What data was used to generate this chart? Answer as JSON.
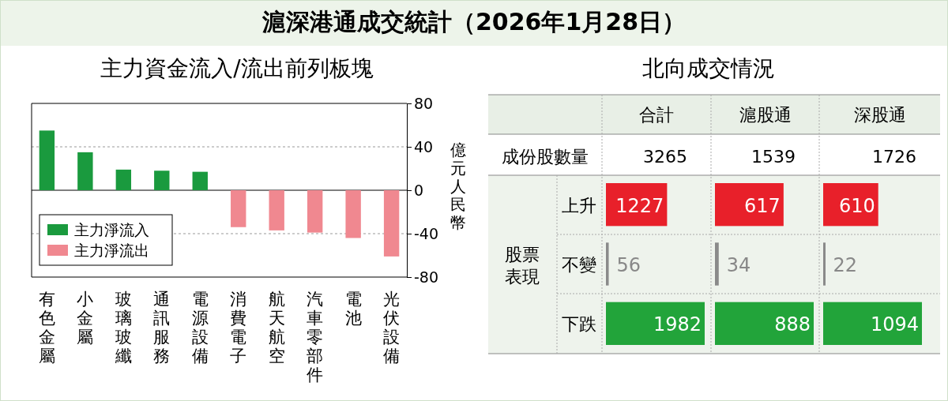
{
  "chart_data": [
    {
      "type": "bar",
      "title": "滬深港通成交統計（2026年1月28日）",
      "subtitle": "主力資金流入/流出前列板塊",
      "ylabel": "億元人民幣",
      "categories": [
        "有色金屬",
        "小金屬",
        "玻璃玻纖",
        "通訊服務",
        "電源設備",
        "消費電子",
        "航天航空",
        "汽車零部件",
        "電池",
        "光伏設備"
      ],
      "series": [
        {
          "name": "主力淨流入",
          "color": "#1a9a3e",
          "values": [
            55,
            35,
            19,
            18,
            17,
            null,
            null,
            null,
            null,
            null
          ]
        },
        {
          "name": "主力淨流出",
          "color": "#f08890",
          "values": [
            null,
            null,
            null,
            null,
            null,
            -34,
            -37,
            -39,
            -44,
            -61
          ]
        }
      ],
      "ylim": [
        -80,
        80
      ],
      "yticks": [
        -80,
        -40,
        0,
        40,
        80
      ],
      "grid": "y",
      "legend": "bottom left"
    },
    {
      "type": "bar",
      "orientation": "horizontal",
      "title": "北向成交情況",
      "subtitle": "合計",
      "ylabel": "股票表現",
      "annotations": [
        "成份股數量",
        "3265"
      ],
      "categories": [
        "上升",
        "不變",
        "下跌"
      ],
      "colors": [
        "#e8202a",
        "#8a8a8a",
        "#22a43a"
      ],
      "values": [
        1227,
        56,
        1982
      ],
      "data_labels": true
    },
    {
      "type": "bar",
      "orientation": "horizontal",
      "title": "滬股通",
      "annotations": [
        "1539"
      ],
      "categories": [
        "上升",
        "不變",
        "下跌"
      ],
      "colors": [
        "#e8202a",
        "#8a8a8a",
        "#22a43a"
      ],
      "values": [
        617,
        34,
        888
      ],
      "data_labels": true,
      "tick_labels": false
    },
    {
      "type": "bar",
      "orientation": "horizontal",
      "title": "深股通",
      "annotations": [
        "1726"
      ],
      "categories": [
        "上升",
        "不變",
        "下跌"
      ],
      "colors": [
        "#e8202a",
        "#8a8a8a",
        "#22a43a"
      ],
      "values": [
        610,
        22,
        1094
      ],
      "data_labels": true,
      "tick_labels": false
    }
  ]
}
